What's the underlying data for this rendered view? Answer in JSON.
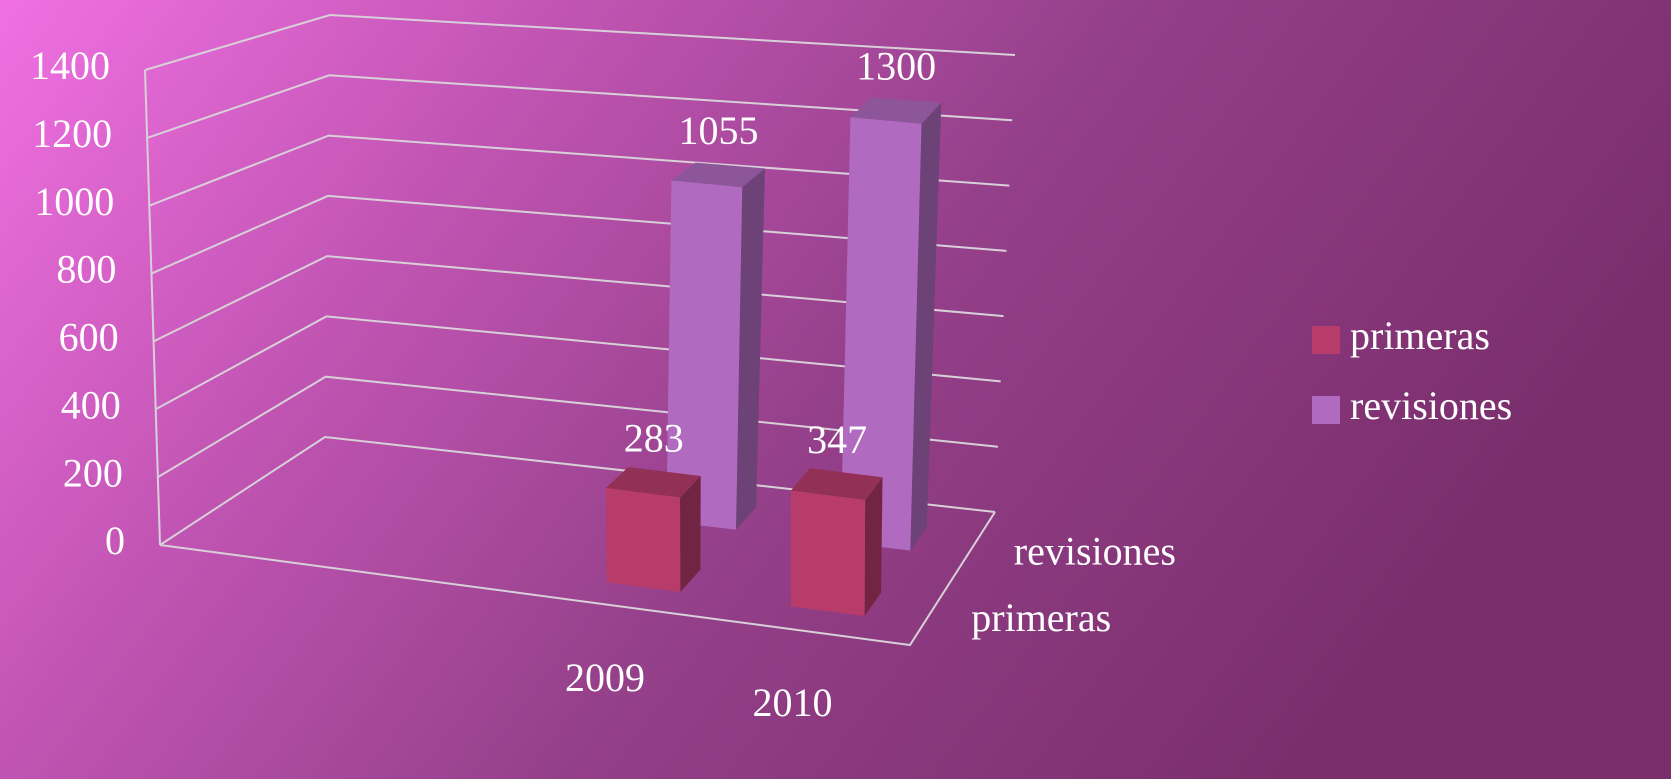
{
  "chart_data": {
    "type": "bar3d",
    "categories": [
      "2009",
      "2010"
    ],
    "series": [
      {
        "name": "primeras",
        "color": "#b83c6a",
        "values": [
          283,
          347
        ]
      },
      {
        "name": "revisiones",
        "color": "#b06ac0",
        "values": [
          1055,
          1300
        ]
      }
    ],
    "ylim": [
      0,
      1400
    ],
    "yticks": [
      0,
      200,
      400,
      600,
      800,
      1000,
      1200,
      1400
    ],
    "grid": true,
    "legend": "right"
  }
}
